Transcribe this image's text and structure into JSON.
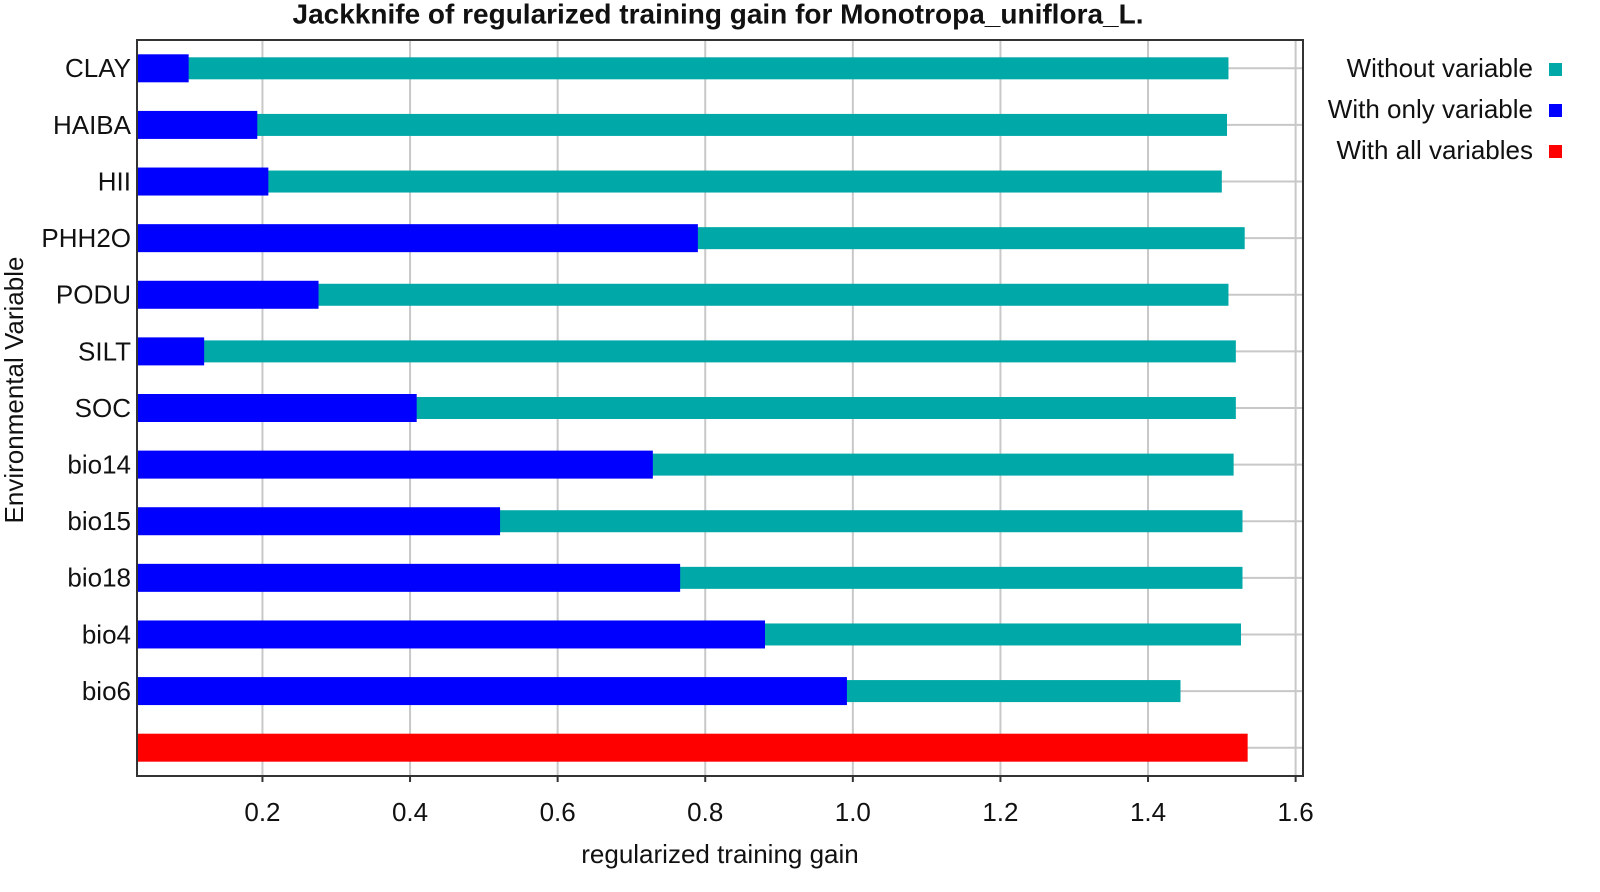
{
  "chart_data": {
    "type": "bar",
    "orientation": "horizontal",
    "title": "Jackknife of regularized training gain for Monotropa_uniflora_L.",
    "x_label": "regularized training gain",
    "y_label": "Environmental Variable",
    "categories": [
      "CLAY",
      "HAIBA",
      "HII",
      "PHH2O",
      "PODU",
      "SILT",
      "SOC",
      "bio14",
      "bio15",
      "bio18",
      "bio4",
      "bio6",
      null
    ],
    "series": [
      {
        "name": "Without variable",
        "color": "#00a8a8",
        "values": [
          1.509,
          1.507,
          1.5,
          1.531,
          1.509,
          1.519,
          1.519,
          1.516,
          1.528,
          1.528,
          1.526,
          1.444,
          null
        ]
      },
      {
        "name": "With only variable",
        "color": "#0000ff",
        "values": [
          0.1,
          0.193,
          0.208,
          0.79,
          0.276,
          0.121,
          0.409,
          0.729,
          0.522,
          0.766,
          0.881,
          0.992,
          null
        ]
      },
      {
        "name": "With all variables",
        "color": "#ff0000",
        "values": [
          null,
          null,
          null,
          null,
          null,
          null,
          null,
          null,
          null,
          null,
          null,
          null,
          1.535
        ]
      }
    ],
    "xlim": [
      0.03,
      1.61
    ],
    "xticks": [
      0.2,
      0.4,
      0.6,
      0.8,
      {
        "value": 1,
        "label": "1.0"
      },
      1.2,
      1.4,
      1.6
    ],
    "grid": true,
    "legend": "upper right"
  }
}
